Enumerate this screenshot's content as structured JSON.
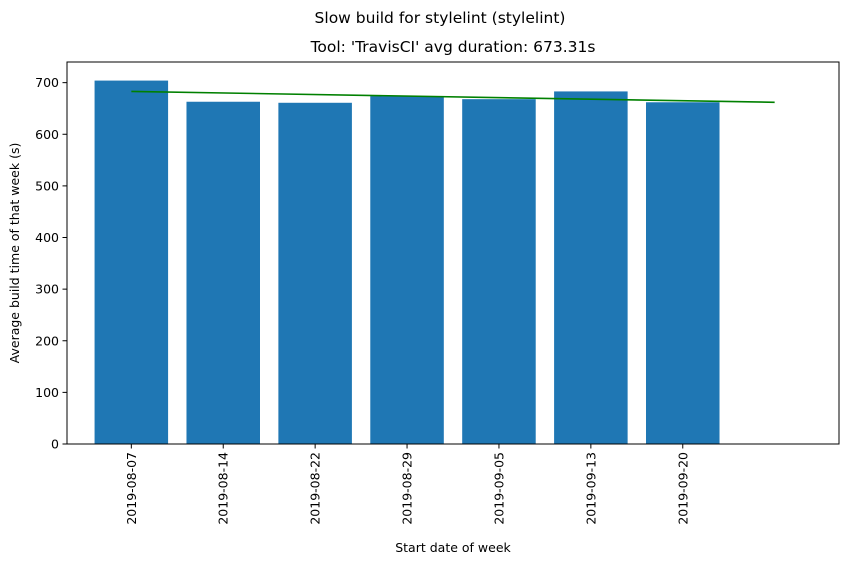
{
  "chart_data": {
    "type": "bar",
    "suptitle": "Slow build for stylelint (stylelint)",
    "title": "Tool: 'TravisCI' avg duration: 673.31s",
    "xlabel": "Start date of week",
    "ylabel": "Average build time of that week (s)",
    "categories": [
      "2019-08-07",
      "2019-08-14",
      "2019-08-22",
      "2019-08-29",
      "2019-09-05",
      "2019-09-13",
      "2019-09-20"
    ],
    "values": [
      704,
      663,
      661,
      674,
      668,
      683,
      662
    ],
    "bar_color": "#1f77b4",
    "trend": {
      "color": "#008000",
      "start": 683,
      "end": 662
    },
    "yticks": [
      0,
      100,
      200,
      300,
      400,
      500,
      600,
      700
    ],
    "ylim": [
      0,
      740
    ],
    "grid": false,
    "legend": "none"
  }
}
